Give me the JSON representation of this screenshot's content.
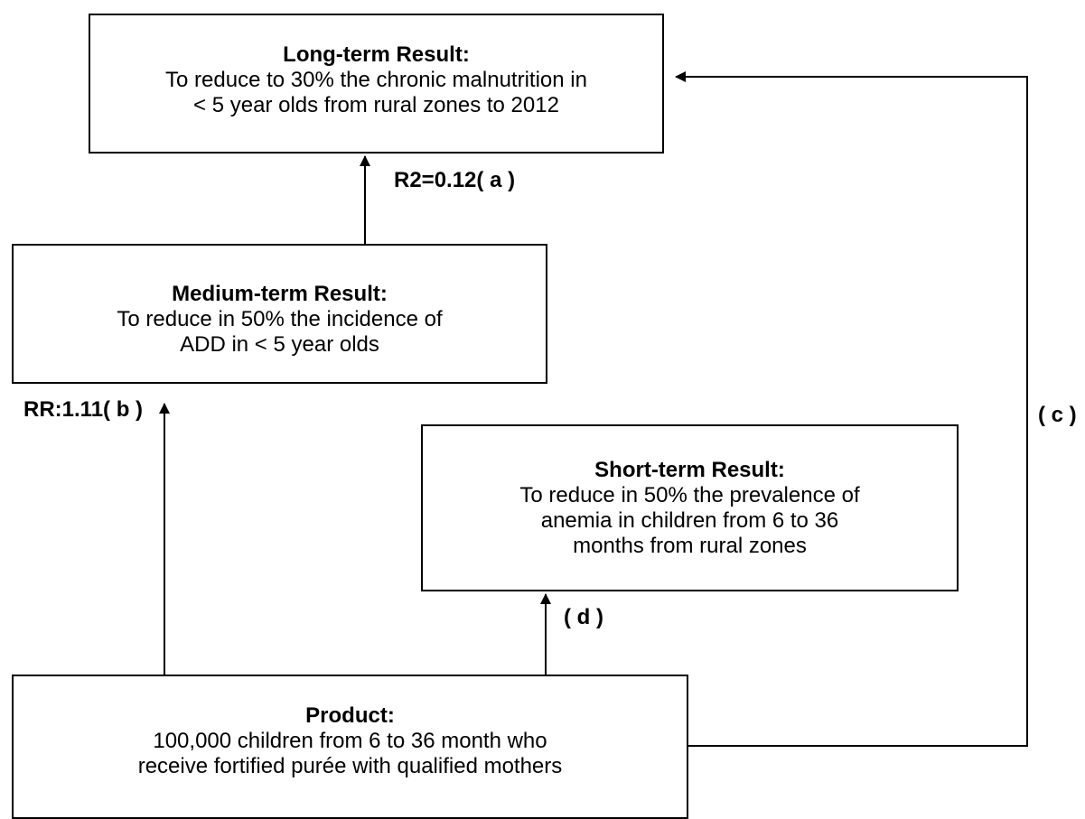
{
  "boxes": {
    "long_term": {
      "title": "Long-term Result:",
      "lines": [
        "To reduce to 30% the chronic malnutrition in",
        "< 5 year olds from rural zones to 2012"
      ]
    },
    "medium_term": {
      "title": "Medium-term Result:",
      "lines": [
        "To reduce in 50% the incidence of",
        "ADD in < 5 year olds"
      ]
    },
    "short_term": {
      "title": "Short-term Result:",
      "lines": [
        "To reduce in 50% the prevalence of",
        "anemia in children from 6 to 36",
        "months from rural zones"
      ]
    },
    "product": {
      "title": "Product:",
      "lines": [
        "100,000 children from 6 to 36 month who",
        "receive fortified purée with qualified mothers"
      ]
    }
  },
  "links": {
    "a": "R2=0.12( a )",
    "b": "RR:1.11( b )",
    "c": "( c )",
    "d": "( d )"
  },
  "colors": {
    "stroke": "#000000",
    "background": "#ffffff"
  }
}
